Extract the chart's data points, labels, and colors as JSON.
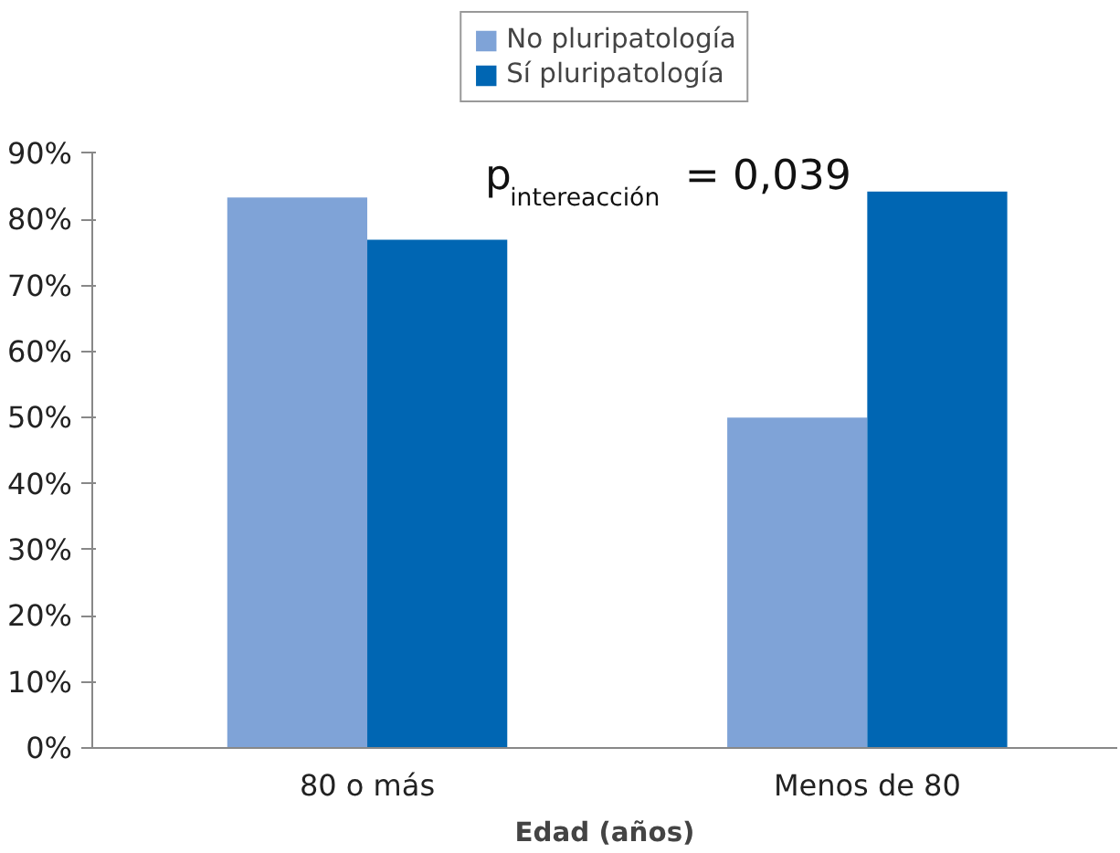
{
  "chart_data": {
    "type": "bar",
    "xlabel": "Edad (años)",
    "categories": [
      "80 o más",
      "Menos de 80"
    ],
    "series": [
      {
        "name": "No pluripatología",
        "color": "#7fa3d7",
        "values": [
          83.3,
          50
        ]
      },
      {
        "name": "Sí pluripatología",
        "color": "#0066b3",
        "values": [
          76.9,
          84.2
        ]
      }
    ],
    "ylim": [
      0,
      90
    ],
    "yticks": [
      {
        "value": 0,
        "label": "0%"
      },
      {
        "value": 10,
        "label": "10%"
      },
      {
        "value": 20,
        "label": "20%"
      },
      {
        "value": 30,
        "label": "30%"
      },
      {
        "value": 40,
        "label": "40%"
      },
      {
        "value": 50,
        "label": "50%"
      },
      {
        "value": 60,
        "label": "60%"
      },
      {
        "value": 70,
        "label": "70%"
      },
      {
        "value": 80,
        "label": "80%"
      },
      {
        "value": 90,
        "label": "90%"
      }
    ],
    "annotations": [
      "p$_{intereacción}$ = 0,039"
    ],
    "grid": false,
    "legend": "top"
  }
}
